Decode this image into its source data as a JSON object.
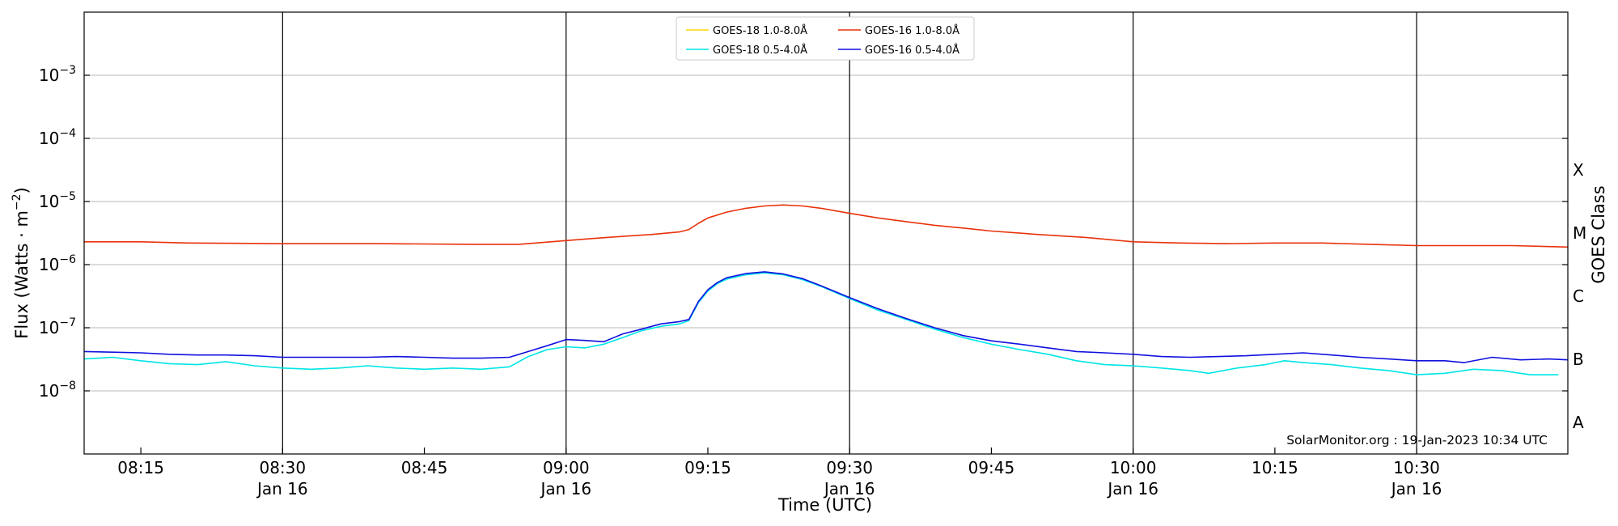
{
  "chart_data": {
    "type": "line",
    "y_scale": "log",
    "ylim": [
      1e-09,
      0.01
    ],
    "x_range": [
      "2023-01-16 08:09",
      "2023-01-16 10:46"
    ],
    "xlabel": "Time (UTC)",
    "ylabel_main": "Flux (Watts · m",
    "ylabel_sup": "−2",
    "ylabel_close": ")",
    "y2label": "GOES Class",
    "y_ticks": [
      {
        "mantissa": "10",
        "exp": "−3"
      },
      {
        "mantissa": "10",
        "exp": "−4"
      },
      {
        "mantissa": "10",
        "exp": "−5"
      },
      {
        "mantissa": "10",
        "exp": "−6"
      },
      {
        "mantissa": "10",
        "exp": "−7"
      },
      {
        "mantissa": "10",
        "exp": "−8"
      }
    ],
    "x_ticks": [
      {
        "time": "08:15",
        "date": ""
      },
      {
        "time": "08:30",
        "date": "Jan 16"
      },
      {
        "time": "08:45",
        "date": ""
      },
      {
        "time": "09:00",
        "date": "Jan 16"
      },
      {
        "time": "09:15",
        "date": ""
      },
      {
        "time": "09:30",
        "date": "Jan 16"
      },
      {
        "time": "09:45",
        "date": ""
      },
      {
        "time": "10:00",
        "date": "Jan 16"
      },
      {
        "time": "10:15",
        "date": ""
      },
      {
        "time": "10:30",
        "date": "Jan 16"
      }
    ],
    "class_labels": [
      "X",
      "M",
      "C",
      "B",
      "A"
    ],
    "grid": "horizontal",
    "legend_position": "top-center",
    "annotation": "SolarMonitor.org : 19-Jan-2023 10:34 UTC",
    "series": [
      {
        "name": "GOES-18 1.0-8.0Å",
        "color": "#ffd700",
        "points": []
      },
      {
        "name": "GOES-18 0.5-4.0Å",
        "color": "#00e5e5",
        "points": [
          [
            "08:09",
            3.2e-08
          ],
          [
            "08:12",
            3.4e-08
          ],
          [
            "08:15",
            3e-08
          ],
          [
            "08:18",
            2.7e-08
          ],
          [
            "08:21",
            2.6e-08
          ],
          [
            "08:24",
            2.9e-08
          ],
          [
            "08:27",
            2.5e-08
          ],
          [
            "08:30",
            2.3e-08
          ],
          [
            "08:33",
            2.2e-08
          ],
          [
            "08:36",
            2.3e-08
          ],
          [
            "08:39",
            2.5e-08
          ],
          [
            "08:42",
            2.3e-08
          ],
          [
            "08:45",
            2.2e-08
          ],
          [
            "08:48",
            2.3e-08
          ],
          [
            "08:51",
            2.2e-08
          ],
          [
            "08:54",
            2.4e-08
          ],
          [
            "08:56",
            3.5e-08
          ],
          [
            "08:58",
            4.5e-08
          ],
          [
            "09:00",
            5e-08
          ],
          [
            "09:02",
            4.8e-08
          ],
          [
            "09:04",
            5.5e-08
          ],
          [
            "09:06",
            7e-08
          ],
          [
            "09:08",
            9e-08
          ],
          [
            "09:10",
            1.05e-07
          ],
          [
            "09:12",
            1.15e-07
          ],
          [
            "09:13",
            1.3e-07
          ],
          [
            "09:14",
            2.5e-07
          ],
          [
            "09:15",
            3.8e-07
          ],
          [
            "09:16",
            5e-07
          ],
          [
            "09:17",
            5.9e-07
          ],
          [
            "09:19",
            6.9e-07
          ],
          [
            "09:21",
            7.4e-07
          ],
          [
            "09:23",
            6.9e-07
          ],
          [
            "09:25",
            5.8e-07
          ],
          [
            "09:27",
            4.5e-07
          ],
          [
            "09:30",
            2.9e-07
          ],
          [
            "09:33",
            1.9e-07
          ],
          [
            "09:36",
            1.35e-07
          ],
          [
            "09:39",
            9.5e-08
          ],
          [
            "09:42",
            7e-08
          ],
          [
            "09:45",
            5.5e-08
          ],
          [
            "09:48",
            4.5e-08
          ],
          [
            "09:51",
            3.8e-08
          ],
          [
            "09:54",
            3e-08
          ],
          [
            "09:57",
            2.6e-08
          ],
          [
            "10:00",
            2.5e-08
          ],
          [
            "10:03",
            2.3e-08
          ],
          [
            "10:06",
            2.1e-08
          ],
          [
            "10:08",
            1.9e-08
          ],
          [
            "10:11",
            2.3e-08
          ],
          [
            "10:14",
            2.6e-08
          ],
          [
            "10:16",
            3e-08
          ],
          [
            "10:18",
            2.8e-08
          ],
          [
            "10:21",
            2.6e-08
          ],
          [
            "10:24",
            2.3e-08
          ],
          [
            "10:27",
            2.1e-08
          ],
          [
            "10:30",
            1.8e-08
          ],
          [
            "10:33",
            1.9e-08
          ],
          [
            "10:36",
            2.2e-08
          ],
          [
            "10:39",
            2.1e-08
          ],
          [
            "10:42",
            1.8e-08
          ],
          [
            "10:45",
            1.8e-08
          ]
        ]
      },
      {
        "name": "GOES-16 1.0-8.0Å",
        "color": "#e8320a",
        "points": [
          [
            "08:09",
            2.3e-06
          ],
          [
            "08:15",
            2.3e-06
          ],
          [
            "08:20",
            2.2e-06
          ],
          [
            "08:30",
            2.15e-06
          ],
          [
            "08:40",
            2.15e-06
          ],
          [
            "08:50",
            2.1e-06
          ],
          [
            "08:55",
            2.1e-06
          ],
          [
            "09:00",
            2.4e-06
          ],
          [
            "09:03",
            2.6e-06
          ],
          [
            "09:06",
            2.8e-06
          ],
          [
            "09:09",
            3e-06
          ],
          [
            "09:12",
            3.3e-06
          ],
          [
            "09:13",
            3.6e-06
          ],
          [
            "09:14",
            4.5e-06
          ],
          [
            "09:15",
            5.5e-06
          ],
          [
            "09:17",
            6.8e-06
          ],
          [
            "09:19",
            7.8e-06
          ],
          [
            "09:21",
            8.5e-06
          ],
          [
            "09:23",
            8.8e-06
          ],
          [
            "09:25",
            8.5e-06
          ],
          [
            "09:27",
            7.8e-06
          ],
          [
            "09:30",
            6.5e-06
          ],
          [
            "09:33",
            5.5e-06
          ],
          [
            "09:36",
            4.8e-06
          ],
          [
            "09:39",
            4.2e-06
          ],
          [
            "09:42",
            3.8e-06
          ],
          [
            "09:45",
            3.4e-06
          ],
          [
            "09:50",
            3e-06
          ],
          [
            "09:55",
            2.7e-06
          ],
          [
            "10:00",
            2.3e-06
          ],
          [
            "10:05",
            2.2e-06
          ],
          [
            "10:10",
            2.15e-06
          ],
          [
            "10:15",
            2.2e-06
          ],
          [
            "10:20",
            2.2e-06
          ],
          [
            "10:25",
            2.1e-06
          ],
          [
            "10:30",
            2e-06
          ],
          [
            "10:35",
            2e-06
          ],
          [
            "10:40",
            2e-06
          ],
          [
            "10:46",
            1.9e-06
          ]
        ]
      },
      {
        "name": "GOES-16 0.5-4.0Å",
        "color": "#1010e0",
        "points": [
          [
            "08:09",
            4.2e-08
          ],
          [
            "08:12",
            4.1e-08
          ],
          [
            "08:15",
            4e-08
          ],
          [
            "08:18",
            3.8e-08
          ],
          [
            "08:21",
            3.7e-08
          ],
          [
            "08:24",
            3.7e-08
          ],
          [
            "08:27",
            3.6e-08
          ],
          [
            "08:30",
            3.4e-08
          ],
          [
            "08:33",
            3.4e-08
          ],
          [
            "08:36",
            3.4e-08
          ],
          [
            "08:39",
            3.4e-08
          ],
          [
            "08:42",
            3.5e-08
          ],
          [
            "08:45",
            3.4e-08
          ],
          [
            "08:48",
            3.3e-08
          ],
          [
            "08:51",
            3.3e-08
          ],
          [
            "08:54",
            3.4e-08
          ],
          [
            "08:56",
            4.2e-08
          ],
          [
            "08:58",
            5.2e-08
          ],
          [
            "09:00",
            6.5e-08
          ],
          [
            "09:02",
            6.3e-08
          ],
          [
            "09:04",
            6e-08
          ],
          [
            "09:06",
            8e-08
          ],
          [
            "09:08",
            9.5e-08
          ],
          [
            "09:10",
            1.15e-07
          ],
          [
            "09:12",
            1.25e-07
          ],
          [
            "09:13",
            1.35e-07
          ],
          [
            "09:14",
            2.6e-07
          ],
          [
            "09:15",
            4e-07
          ],
          [
            "09:16",
            5.2e-07
          ],
          [
            "09:17",
            6.2e-07
          ],
          [
            "09:19",
            7.2e-07
          ],
          [
            "09:21",
            7.7e-07
          ],
          [
            "09:23",
            7.1e-07
          ],
          [
            "09:25",
            6e-07
          ],
          [
            "09:27",
            4.6e-07
          ],
          [
            "09:30",
            3e-07
          ],
          [
            "09:33",
            2e-07
          ],
          [
            "09:36",
            1.4e-07
          ],
          [
            "09:39",
            1e-07
          ],
          [
            "09:42",
            7.5e-08
          ],
          [
            "09:45",
            6.2e-08
          ],
          [
            "09:48",
            5.5e-08
          ],
          [
            "09:51",
            4.8e-08
          ],
          [
            "09:54",
            4.2e-08
          ],
          [
            "09:57",
            4e-08
          ],
          [
            "10:00",
            3.8e-08
          ],
          [
            "10:03",
            3.5e-08
          ],
          [
            "10:06",
            3.4e-08
          ],
          [
            "10:09",
            3.5e-08
          ],
          [
            "10:12",
            3.6e-08
          ],
          [
            "10:15",
            3.8e-08
          ],
          [
            "10:18",
            4e-08
          ],
          [
            "10:21",
            3.7e-08
          ],
          [
            "10:24",
            3.4e-08
          ],
          [
            "10:27",
            3.2e-08
          ],
          [
            "10:30",
            3e-08
          ],
          [
            "10:33",
            3e-08
          ],
          [
            "10:35",
            2.8e-08
          ],
          [
            "10:38",
            3.4e-08
          ],
          [
            "10:41",
            3.1e-08
          ],
          [
            "10:44",
            3.2e-08
          ],
          [
            "10:46",
            3.1e-08
          ]
        ]
      }
    ]
  }
}
